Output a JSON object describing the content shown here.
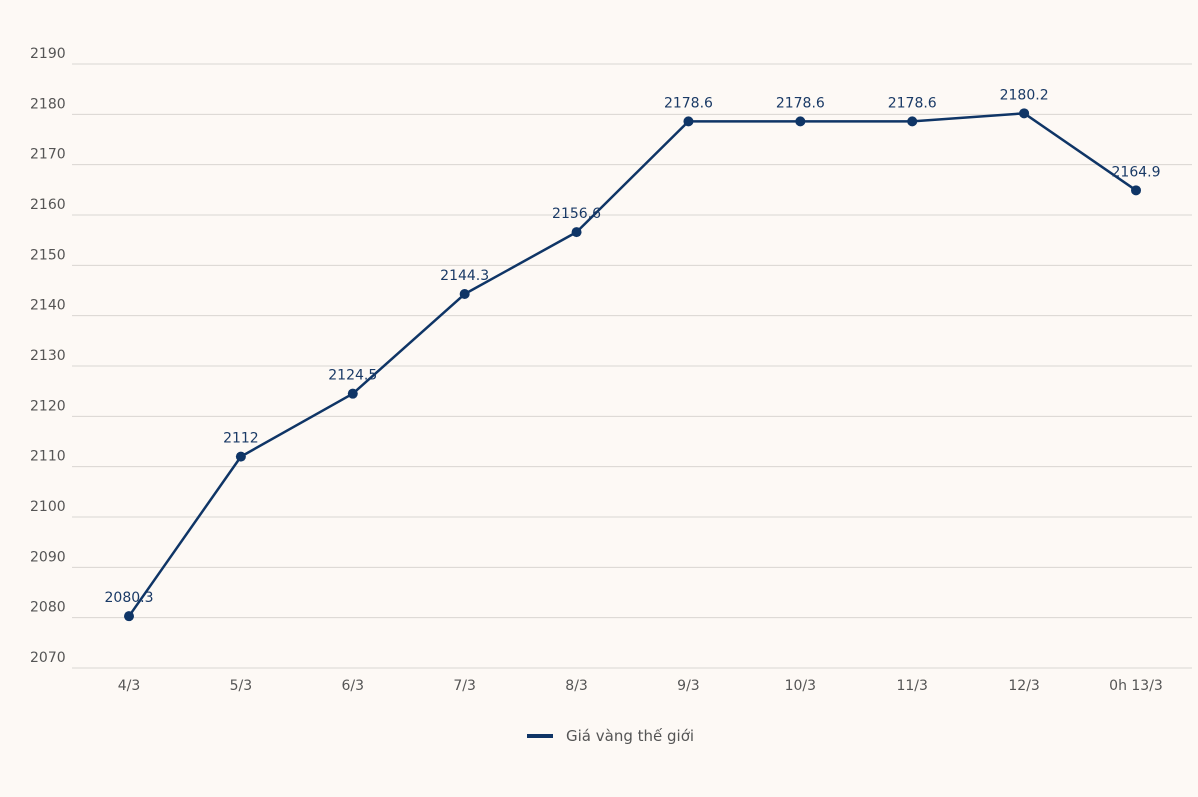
{
  "chart_data": {
    "type": "line",
    "title": "",
    "xlabel": "",
    "ylabel": "",
    "categories": [
      "4/3",
      "5/3",
      "6/3",
      "7/3",
      "8/3",
      "9/3",
      "10/3",
      "11/3",
      "12/3",
      "0h 13/3"
    ],
    "series": [
      {
        "name": "Giá vàng thế giới",
        "color": "#0f3566",
        "values": [
          2080.3,
          2112,
          2124.5,
          2144.3,
          2156.6,
          2178.6,
          2178.6,
          2178.6,
          2180.2,
          2164.9
        ],
        "labels": [
          "2080.3",
          "2112",
          "2124.5",
          "2144.3",
          "2156.6",
          "2178.6",
          "2178.6",
          "2178.6",
          "2180.2",
          "2164.9"
        ]
      }
    ],
    "ylim": [
      2070,
      2190
    ],
    "yticks": [
      "2070",
      "2080",
      "2090",
      "2100",
      "2110",
      "2120",
      "2130",
      "2140",
      "2150",
      "2160",
      "2170",
      "2180",
      "2190"
    ],
    "grid": true,
    "legend": "bottom-center"
  }
}
